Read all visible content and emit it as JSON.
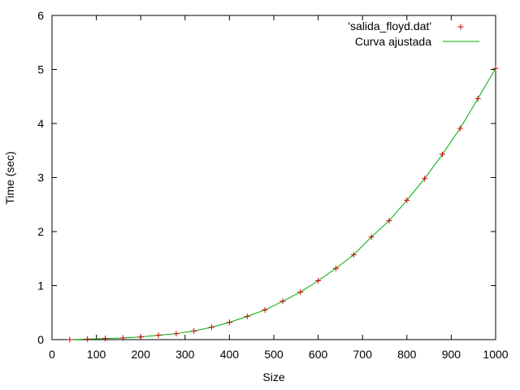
{
  "chart_data": {
    "type": "scatter",
    "xlabel": "Size",
    "ylabel": "Time (sec)",
    "xlim": [
      0,
      1000
    ],
    "ylim": [
      0,
      6
    ],
    "xticks": [
      0,
      100,
      200,
      300,
      400,
      500,
      600,
      700,
      800,
      900,
      1000
    ],
    "yticks": [
      0,
      1,
      2,
      3,
      4,
      5,
      6
    ],
    "legend_position": "top-right",
    "series": [
      {
        "name": "'salida_floyd.dat'",
        "style": "points",
        "marker": "+",
        "color": "#cc0000",
        "x": [
          40,
          80,
          120,
          160,
          200,
          240,
          280,
          320,
          360,
          400,
          440,
          480,
          520,
          560,
          600,
          640,
          680,
          720,
          760,
          800,
          840,
          880,
          920,
          960,
          1000
        ],
        "y": [
          0.0,
          0.01,
          0.02,
          0.03,
          0.05,
          0.08,
          0.11,
          0.16,
          0.23,
          0.32,
          0.43,
          0.55,
          0.71,
          0.88,
          1.09,
          1.32,
          1.57,
          1.9,
          2.2,
          2.58,
          2.98,
          3.43,
          3.91,
          4.46,
          5.02
        ]
      },
      {
        "name": "Curva ajustada",
        "style": "line",
        "color": "#00aa00",
        "x": [
          40,
          80,
          120,
          160,
          200,
          240,
          280,
          320,
          360,
          400,
          440,
          480,
          520,
          560,
          600,
          640,
          680,
          720,
          760,
          800,
          840,
          880,
          920,
          960,
          1000
        ],
        "y": [
          0.0,
          0.01,
          0.02,
          0.03,
          0.05,
          0.08,
          0.11,
          0.16,
          0.23,
          0.32,
          0.43,
          0.55,
          0.71,
          0.88,
          1.09,
          1.32,
          1.57,
          1.9,
          2.2,
          2.58,
          2.98,
          3.43,
          3.91,
          4.46,
          5.02
        ]
      }
    ]
  }
}
